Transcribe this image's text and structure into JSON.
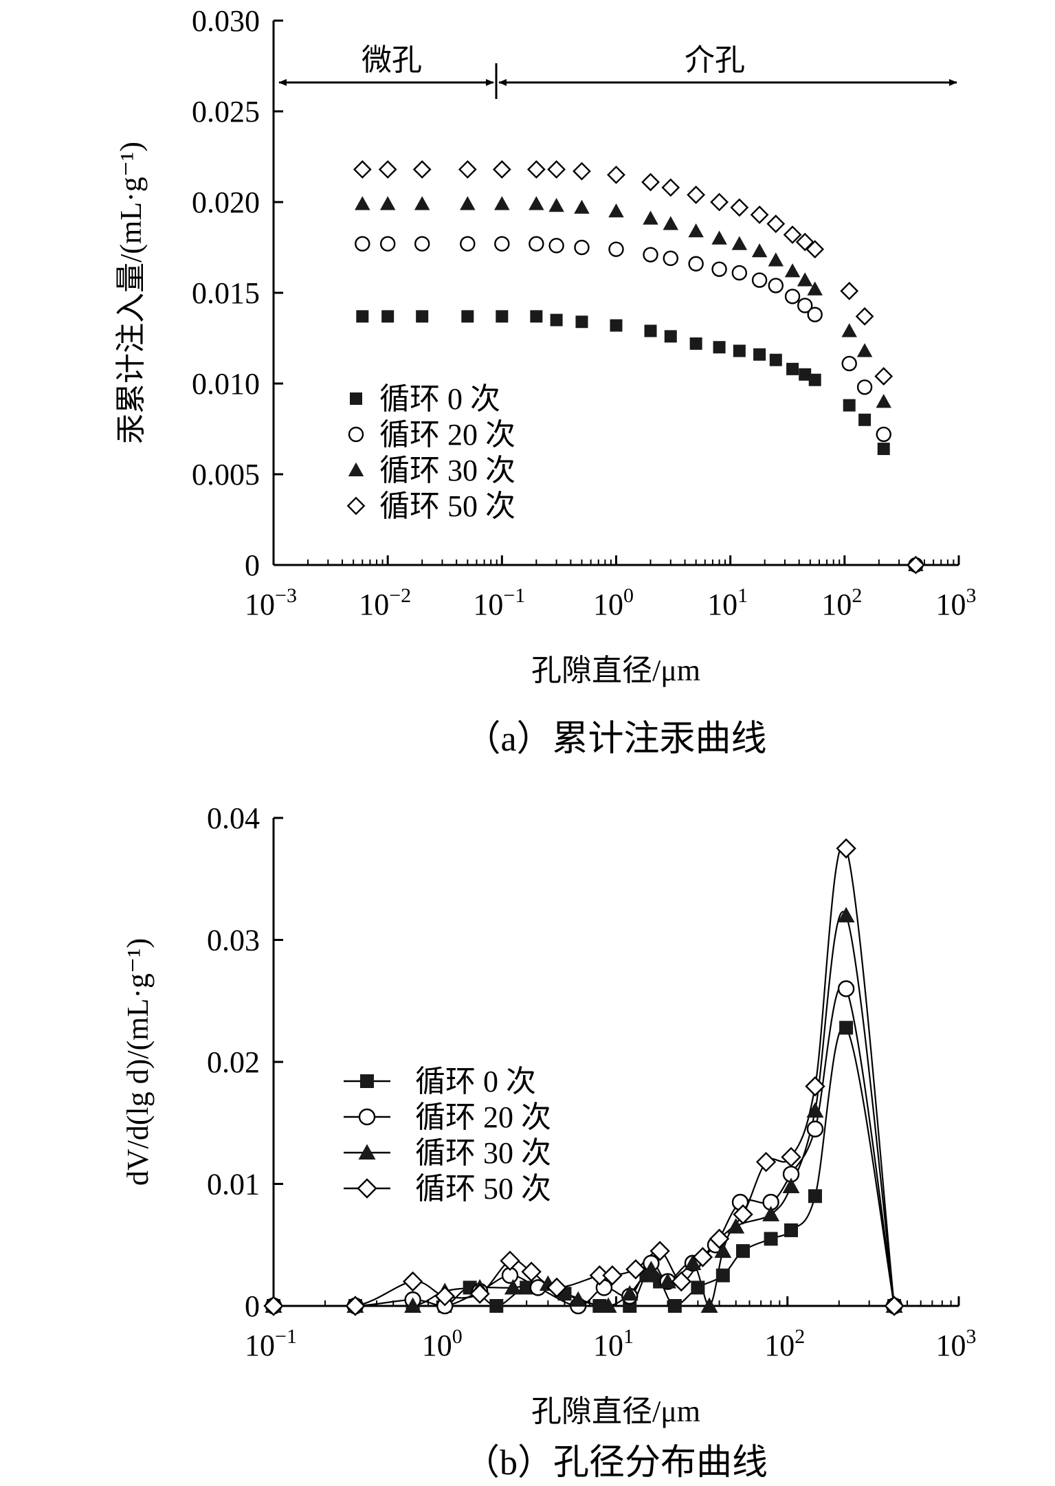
{
  "chart_data": [
    {
      "type": "scatter",
      "panel": "a",
      "caption": "（a）累计注汞曲线",
      "xlabel": "孔隙直径/μm",
      "ylabel": "汞累计注入量/(mL·g⁻¹)",
      "xscale": "log",
      "xlim_exp": [
        -3,
        3
      ],
      "ylim": [
        0,
        0.03
      ],
      "y_ticks": [
        "0",
        "0.005",
        "0.010",
        "0.015",
        "0.020",
        "0.025",
        "0.030"
      ],
      "y_tick_values": [
        0,
        0.005,
        0.01,
        0.015,
        0.02,
        0.025,
        0.03
      ],
      "x_tick_exps": [
        "−3",
        "−2",
        "−1",
        "0",
        "1",
        "2",
        "3"
      ],
      "x_tick_base": "10",
      "regions": [
        {
          "label": "微孔",
          "from": 0.001,
          "to": 0.1
        },
        {
          "label": "介孔",
          "from": 0.1,
          "to": 1000
        }
      ],
      "series": [
        {
          "name": "循环 0 次",
          "marker": "square",
          "points": [
            [
              0.006,
              0.0137
            ],
            [
              0.01,
              0.0137
            ],
            [
              0.02,
              0.0137
            ],
            [
              0.05,
              0.0137
            ],
            [
              0.1,
              0.0137
            ],
            [
              0.2,
              0.0137
            ],
            [
              0.3,
              0.0135
            ],
            [
              0.5,
              0.0134
            ],
            [
              1,
              0.0132
            ],
            [
              2,
              0.0129
            ],
            [
              3,
              0.0126
            ],
            [
              5,
              0.0122
            ],
            [
              8,
              0.012
            ],
            [
              12,
              0.0118
            ],
            [
              18,
              0.0116
            ],
            [
              25,
              0.0113
            ],
            [
              35,
              0.0108
            ],
            [
              45,
              0.0105
            ],
            [
              55,
              0.0102
            ],
            [
              110,
              0.0088
            ],
            [
              150,
              0.008
            ],
            [
              220,
              0.0064
            ]
          ]
        },
        {
          "name": "循环 20 次",
          "marker": "circle",
          "points": [
            [
              0.006,
              0.0177
            ],
            [
              0.01,
              0.0177
            ],
            [
              0.02,
              0.0177
            ],
            [
              0.05,
              0.0177
            ],
            [
              0.1,
              0.0177
            ],
            [
              0.2,
              0.0177
            ],
            [
              0.3,
              0.0176
            ],
            [
              0.5,
              0.0175
            ],
            [
              1,
              0.0174
            ],
            [
              2,
              0.0171
            ],
            [
              3,
              0.0169
            ],
            [
              5,
              0.0166
            ],
            [
              8,
              0.0163
            ],
            [
              12,
              0.0161
            ],
            [
              18,
              0.0157
            ],
            [
              25,
              0.0154
            ],
            [
              35,
              0.0148
            ],
            [
              45,
              0.0143
            ],
            [
              55,
              0.0138
            ],
            [
              110,
              0.0111
            ],
            [
              150,
              0.0098
            ],
            [
              220,
              0.0072
            ],
            [
              420,
              0
            ]
          ]
        },
        {
          "name": "循环 30 次",
          "marker": "triangle",
          "points": [
            [
              0.006,
              0.0199
            ],
            [
              0.01,
              0.0199
            ],
            [
              0.02,
              0.0199
            ],
            [
              0.05,
              0.0199
            ],
            [
              0.1,
              0.0199
            ],
            [
              0.2,
              0.0199
            ],
            [
              0.3,
              0.0198
            ],
            [
              0.5,
              0.0197
            ],
            [
              1,
              0.0195
            ],
            [
              2,
              0.0191
            ],
            [
              3,
              0.0188
            ],
            [
              5,
              0.0184
            ],
            [
              8,
              0.018
            ],
            [
              12,
              0.0177
            ],
            [
              18,
              0.0173
            ],
            [
              25,
              0.0168
            ],
            [
              35,
              0.0162
            ],
            [
              45,
              0.0157
            ],
            [
              55,
              0.0152
            ],
            [
              110,
              0.0129
            ],
            [
              150,
              0.0118
            ],
            [
              220,
              0.009
            ],
            [
              420,
              0
            ]
          ]
        },
        {
          "name": "循环 50 次",
          "marker": "diamond",
          "points": [
            [
              0.006,
              0.0218
            ],
            [
              0.01,
              0.0218
            ],
            [
              0.02,
              0.0218
            ],
            [
              0.05,
              0.0218
            ],
            [
              0.1,
              0.0218
            ],
            [
              0.2,
              0.0218
            ],
            [
              0.3,
              0.0218
            ],
            [
              0.5,
              0.0217
            ],
            [
              1,
              0.0215
            ],
            [
              2,
              0.0211
            ],
            [
              3,
              0.0208
            ],
            [
              5,
              0.0204
            ],
            [
              8,
              0.02
            ],
            [
              12,
              0.0197
            ],
            [
              18,
              0.0193
            ],
            [
              25,
              0.0188
            ],
            [
              35,
              0.0182
            ],
            [
              45,
              0.0178
            ],
            [
              55,
              0.0174
            ],
            [
              110,
              0.0151
            ],
            [
              150,
              0.0137
            ],
            [
              220,
              0.0104
            ],
            [
              420,
              0
            ]
          ]
        }
      ]
    },
    {
      "type": "line",
      "panel": "b",
      "caption": "（b）孔径分布曲线",
      "xlabel": "孔隙直径/μm",
      "ylabel": "dV/d(lg d)/(mL·g⁻¹)",
      "xscale": "log",
      "xlim_exp": [
        -1,
        3
      ],
      "ylim": [
        0,
        0.04
      ],
      "y_ticks": [
        "0",
        "0.01",
        "0.02",
        "0.03",
        "0.04"
      ],
      "y_tick_values": [
        0,
        0.01,
        0.02,
        0.03,
        0.04
      ],
      "x_tick_exps": [
        "−1",
        "0",
        "1",
        "2",
        "3"
      ],
      "x_tick_base": "10",
      "series": [
        {
          "name": "循环 0 次",
          "marker": "square",
          "points": [
            [
              0.1,
              0
            ],
            [
              0.3,
              0
            ],
            [
              0.65,
              0
            ],
            [
              1,
              0
            ],
            [
              1.4,
              0.0015
            ],
            [
              2,
              0
            ],
            [
              3,
              0.0015
            ],
            [
              5,
              0.001
            ],
            [
              8,
              0
            ],
            [
              12,
              0
            ],
            [
              15,
              0.0025
            ],
            [
              18,
              0.002
            ],
            [
              22,
              0
            ],
            [
              30,
              0.0015
            ],
            [
              42,
              0.0025
            ],
            [
              55,
              0.0045
            ],
            [
              80,
              0.0055
            ],
            [
              105,
              0.0062
            ],
            [
              145,
              0.009
            ],
            [
              220,
              0.0228
            ],
            [
              420,
              0
            ]
          ]
        },
        {
          "name": "循环 20 次",
          "marker": "circle",
          "points": [
            [
              0.1,
              0
            ],
            [
              0.3,
              0
            ],
            [
              0.65,
              0.0005
            ],
            [
              1,
              0
            ],
            [
              1.6,
              0.0012
            ],
            [
              2.4,
              0.0025
            ],
            [
              3.5,
              0.0015
            ],
            [
              6,
              0
            ],
            [
              8.5,
              0.0015
            ],
            [
              12,
              0.0008
            ],
            [
              16,
              0.0035
            ],
            [
              20,
              0.002
            ],
            [
              28,
              0.0035
            ],
            [
              38,
              0.005
            ],
            [
              53,
              0.0085
            ],
            [
              80,
              0.0085
            ],
            [
              105,
              0.0108
            ],
            [
              145,
              0.0145
            ],
            [
              220,
              0.026
            ],
            [
              420,
              0
            ]
          ]
        },
        {
          "name": "循环 30 次",
          "marker": "triangle",
          "points": [
            [
              0.1,
              0
            ],
            [
              0.3,
              0
            ],
            [
              0.65,
              0
            ],
            [
              1,
              0.0012
            ],
            [
              1.6,
              0.0015
            ],
            [
              2.5,
              0.0015
            ],
            [
              4,
              0.0018
            ],
            [
              6,
              0.0005
            ],
            [
              9,
              0
            ],
            [
              12,
              0.001
            ],
            [
              16,
              0.003
            ],
            [
              20,
              0.002
            ],
            [
              28,
              0.0035
            ],
            [
              35,
              0
            ],
            [
              42,
              0.0045
            ],
            [
              50,
              0.0065
            ],
            [
              80,
              0.0075
            ],
            [
              105,
              0.0098
            ],
            [
              145,
              0.016
            ],
            [
              220,
              0.032
            ],
            [
              420,
              0
            ]
          ]
        },
        {
          "name": "循环 50 次",
          "marker": "diamond",
          "points": [
            [
              0.1,
              0
            ],
            [
              0.3,
              0
            ],
            [
              0.65,
              0.002
            ],
            [
              1,
              0.0008
            ],
            [
              1.6,
              0.001
            ],
            [
              2.4,
              0.0037
            ],
            [
              3.2,
              0.0028
            ],
            [
              4.5,
              0.0015
            ],
            [
              8,
              0.0025
            ],
            [
              9.5,
              0.0025
            ],
            [
              13,
              0.003
            ],
            [
              18,
              0.0045
            ],
            [
              24,
              0.002
            ],
            [
              32,
              0.004
            ],
            [
              40,
              0.0055
            ],
            [
              55,
              0.0075
            ],
            [
              75,
              0.0118
            ],
            [
              105,
              0.0122
            ],
            [
              145,
              0.018
            ],
            [
              220,
              0.0375
            ],
            [
              420,
              0
            ]
          ]
        }
      ]
    }
  ]
}
